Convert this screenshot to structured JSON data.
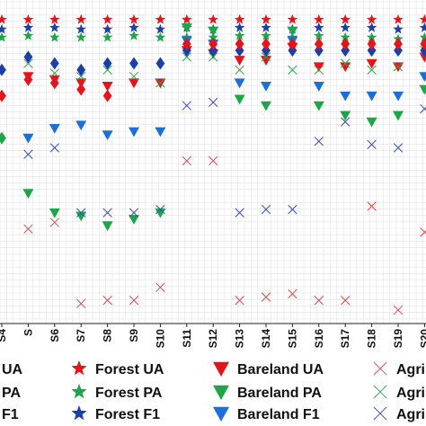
{
  "chart_data": {
    "type": "scatter",
    "grid": true,
    "categories": [
      "S4",
      "S",
      "S6",
      "S7",
      "S8",
      "S9",
      "S10",
      "S11",
      "S12",
      "S13",
      "S14",
      "S15",
      "S16",
      "S17",
      "S18",
      "S19",
      "S20"
    ],
    "series": [
      {
        "name": "Forest UA",
        "marker": "star",
        "color": "#e3141b",
        "values": [
          99.5,
          99.5,
          99.5,
          99.5,
          99.5,
          99.5,
          99.5,
          99.5,
          99.5,
          99.5,
          99.5,
          99.5,
          99.5,
          99.5,
          99.5,
          99.5,
          99.5
        ]
      },
      {
        "name": "Forest PA",
        "marker": "star",
        "color": "#1fa44a",
        "values": [
          94,
          94.5,
          94,
          94,
          94,
          94.5,
          94,
          94,
          94,
          94.5,
          94.5,
          94,
          94.5,
          94,
          94,
          93.5,
          94
        ]
      },
      {
        "name": "Forest F1",
        "marker": "star",
        "color": "#1b3fa8",
        "values": [
          96.5,
          97,
          97,
          96.5,
          96.5,
          97,
          96.5,
          97,
          96.5,
          97,
          97,
          96.5,
          97,
          97,
          97,
          96.5,
          97
        ]
      },
      {
        "name": "Bareland UA",
        "marker": "triangle-down",
        "color": "#e3141b",
        "values": [
          null,
          82,
          81,
          80,
          79,
          80,
          80,
          90,
          89,
          87,
          87,
          91,
          85,
          85,
          86,
          85,
          88
        ]
      },
      {
        "name": "Bareland PA",
        "marker": "triangle-down",
        "color": "#1fa44a",
        "values": [
          null,
          46,
          40,
          39,
          36,
          38,
          40,
          97,
          96,
          75,
          73,
          96,
          73,
          70,
          68,
          70,
          78
        ]
      },
      {
        "name": "Bareland F1",
        "marker": "triangle-down",
        "color": "#1b6fd6",
        "values": [
          null,
          63,
          66,
          67,
          64,
          65,
          65,
          93,
          92,
          80,
          79,
          93,
          79,
          76,
          76,
          76,
          82
        ]
      },
      {
        "name": "Agric",
        "marker": "x",
        "color": "#e04a4a",
        "values": [
          null,
          35,
          37,
          12,
          13,
          13,
          17,
          56,
          56,
          13,
          14,
          15,
          13,
          13,
          42,
          10,
          34
        ]
      },
      {
        "name": "Agric",
        "marker": "x",
        "color": "#2fa34a",
        "values": [
          null,
          86,
          83,
          82,
          84,
          82,
          80,
          88,
          88,
          84,
          88,
          84,
          84,
          86,
          84,
          85,
          90
        ]
      },
      {
        "name": "Agric",
        "marker": "x",
        "color": "#3650b0",
        "values": [
          null,
          58,
          60,
          40,
          40,
          40,
          41,
          73,
          74,
          40,
          41,
          41,
          62,
          68,
          61,
          60,
          72
        ]
      }
    ],
    "legend": {
      "position": "bottom",
      "entries": [
        {
          "label": "UA",
          "marker": "none",
          "color": "#111111"
        },
        {
          "label": "PA",
          "marker": "none",
          "color": "#111111"
        },
        {
          "label": "F1",
          "marker": "none",
          "color": "#111111"
        },
        {
          "label": "Forest UA",
          "marker": "star",
          "color": "#e3141b"
        },
        {
          "label": "Forest PA",
          "marker": "star",
          "color": "#1fa44a"
        },
        {
          "label": "Forest F1",
          "marker": "star",
          "color": "#1b3fa8"
        },
        {
          "label": "Bareland UA",
          "marker": "triangle-down",
          "color": "#e3141b"
        },
        {
          "label": "Bareland PA",
          "marker": "triangle-down",
          "color": "#1fa44a"
        },
        {
          "label": "Bareland F1",
          "marker": "triangle-down",
          "color": "#1b6fd6"
        },
        {
          "label": "Agri",
          "marker": "x",
          "color": "#e04a4a"
        },
        {
          "label": "Agri",
          "marker": "x",
          "color": "#2fa34a"
        },
        {
          "label": "Agri",
          "marker": "x",
          "color": "#3650b0"
        }
      ]
    }
  },
  "partial_markers": [
    {
      "category": "S4",
      "series_color": "#1b3fa8",
      "marker": "diamond",
      "value": 84
    },
    {
      "category": "S4",
      "series_color": "#1fa44a",
      "marker": "diamond",
      "value": 63
    },
    {
      "category": "S4",
      "series_color": "#e3141b",
      "marker": "diamond",
      "value": 76
    },
    {
      "category": "S",
      "series_color": "#1b3fa8",
      "marker": "diamond",
      "value": 88
    },
    {
      "category": "S",
      "series_color": "#e3141b",
      "marker": "diamond",
      "value": 81
    },
    {
      "category": "S6",
      "series_color": "#1b3fa8",
      "marker": "diamond",
      "value": 86
    },
    {
      "category": "S6",
      "series_color": "#e3141b",
      "marker": "diamond",
      "value": 80
    },
    {
      "category": "S7",
      "series_color": "#1b3fa8",
      "marker": "diamond",
      "value": 84
    },
    {
      "category": "S7",
      "series_color": "#e3141b",
      "marker": "diamond",
      "value": 78
    },
    {
      "category": "S8",
      "series_color": "#1b3fa8",
      "marker": "diamond",
      "value": 86
    },
    {
      "category": "S8",
      "series_color": "#e3141b",
      "marker": "diamond",
      "value": 76
    },
    {
      "category": "S9",
      "series_color": "#1b3fa8",
      "marker": "diamond",
      "value": 86
    },
    {
      "category": "S10",
      "series_color": "#1b3fa8",
      "marker": "diamond",
      "value": 86
    },
    {
      "category": "S11",
      "series_color": "#1b3fa8",
      "marker": "diamond",
      "value": 90
    },
    {
      "category": "S11",
      "series_color": "#e3141b",
      "marker": "diamond",
      "value": 92
    },
    {
      "category": "S12",
      "series_color": "#1b3fa8",
      "marker": "diamond",
      "value": 90
    },
    {
      "category": "S12",
      "series_color": "#e3141b",
      "marker": "diamond",
      "value": 92
    },
    {
      "category": "S13",
      "series_color": "#1b3fa8",
      "marker": "diamond",
      "value": 90
    },
    {
      "category": "S13",
      "series_color": "#e3141b",
      "marker": "diamond",
      "value": 92
    },
    {
      "category": "S14",
      "series_color": "#1b3fa8",
      "marker": "diamond",
      "value": 90
    },
    {
      "category": "S14",
      "series_color": "#e3141b",
      "marker": "diamond",
      "value": 92
    },
    {
      "category": "S15",
      "series_color": "#1b3fa8",
      "marker": "diamond",
      "value": 90
    },
    {
      "category": "S15",
      "series_color": "#e3141b",
      "marker": "diamond",
      "value": 92
    },
    {
      "category": "S16",
      "series_color": "#1b3fa8",
      "marker": "diamond",
      "value": 90
    },
    {
      "category": "S16",
      "series_color": "#e3141b",
      "marker": "diamond",
      "value": 92
    },
    {
      "category": "S17",
      "series_color": "#1b3fa8",
      "marker": "diamond",
      "value": 90
    },
    {
      "category": "S17",
      "series_color": "#e3141b",
      "marker": "diamond",
      "value": 92
    },
    {
      "category": "S18",
      "series_color": "#1b3fa8",
      "marker": "diamond",
      "value": 90
    },
    {
      "category": "S18",
      "series_color": "#e3141b",
      "marker": "diamond",
      "value": 92
    },
    {
      "category": "S19",
      "series_color": "#1b3fa8",
      "marker": "diamond",
      "value": 90
    },
    {
      "category": "S19",
      "series_color": "#e3141b",
      "marker": "diamond",
      "value": 92
    },
    {
      "category": "S20",
      "series_color": "#1b3fa8",
      "marker": "diamond",
      "value": 90
    },
    {
      "category": "S20",
      "series_color": "#e3141b",
      "marker": "diamond",
      "value": 92
    }
  ]
}
